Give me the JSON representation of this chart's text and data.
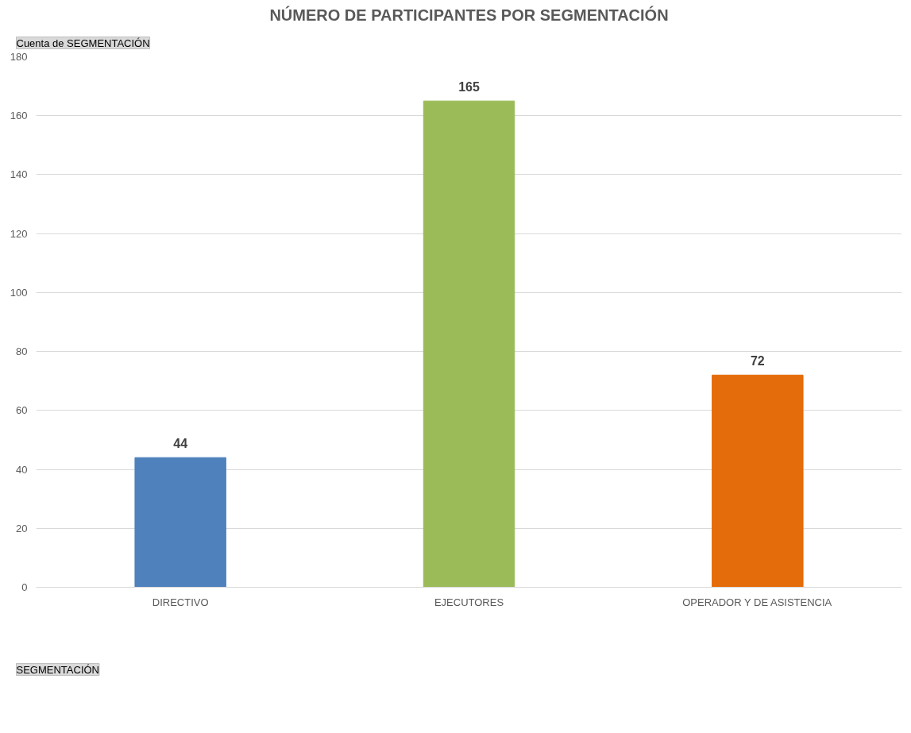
{
  "chart_data": {
    "type": "bar",
    "title": "NÚMERO DE PARTICIPANTES POR SEGMENTACIÓN",
    "categories": [
      "DIRECTIVO",
      "EJECUTORES",
      "OPERADOR Y DE ASISTENCIA"
    ],
    "values": [
      44,
      165,
      72
    ],
    "colors": [
      "#4f81bd",
      "#9bbb59",
      "#e46c0a"
    ],
    "ylim": [
      0,
      180
    ],
    "yticks": [
      0,
      20,
      40,
      60,
      80,
      100,
      120,
      140,
      160,
      180
    ],
    "grid": "y",
    "data_labels": true,
    "annotations": [
      "Cuenta de SEGMENTACIÓN",
      "SEGMENTACIÓN"
    ]
  }
}
